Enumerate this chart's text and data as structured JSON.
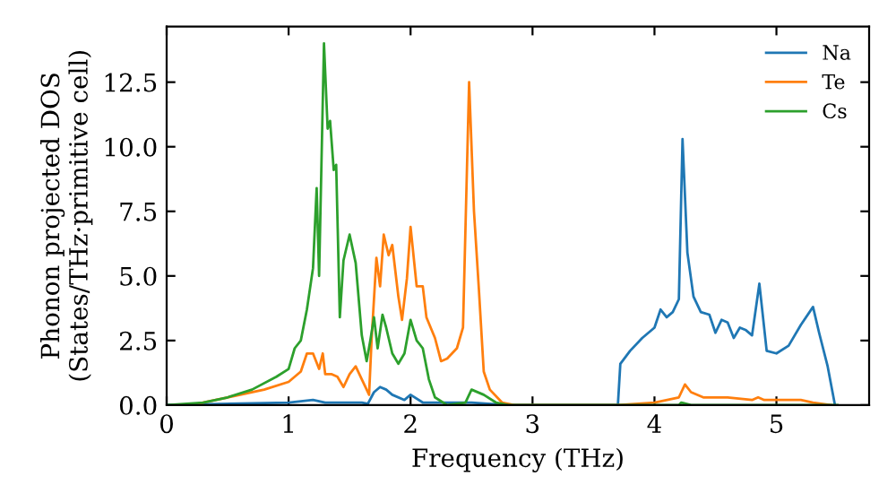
{
  "chart_data": {
    "type": "line",
    "xlabel": "Frequency (THz)",
    "ylabel": "Phonon projected DOS\n(States/THz·primitive cell)",
    "xlim": [
      0,
      5.76
    ],
    "ylim": [
      0,
      14.65
    ],
    "xticks": [
      0,
      1,
      2,
      3,
      4,
      5
    ],
    "yticks": [
      {
        "value": 0,
        "label": "0.0"
      },
      {
        "value": 2.5,
        "label": "2.5"
      },
      {
        "value": 5,
        "label": "5.0"
      },
      {
        "value": 7.5,
        "label": "7.5"
      },
      {
        "value": 10,
        "label": "10.0"
      },
      {
        "value": 12.5,
        "label": "12.5"
      }
    ],
    "legend": "top right",
    "grid": false,
    "series": [
      {
        "name": "Na",
        "color": "#1f77b4",
        "x": [
          0,
          1.0,
          1.2,
          1.3,
          1.6,
          1.65,
          1.7,
          1.75,
          1.8,
          1.85,
          1.95,
          2.0,
          2.1,
          2.5,
          2.8,
          3.7,
          3.72,
          3.8,
          3.9,
          4.0,
          4.05,
          4.1,
          4.15,
          4.2,
          4.23,
          4.27,
          4.32,
          4.38,
          4.45,
          4.5,
          4.55,
          4.6,
          4.65,
          4.7,
          4.75,
          4.8,
          4.86,
          4.92,
          5.0,
          5.1,
          5.2,
          5.3,
          5.35,
          5.42,
          5.48
        ],
        "values": [
          0,
          0.1,
          0.2,
          0.1,
          0.1,
          0.05,
          0.5,
          0.7,
          0.6,
          0.4,
          0.2,
          0.4,
          0.1,
          0.1,
          0,
          0,
          1.6,
          2.1,
          2.6,
          3.0,
          3.7,
          3.4,
          3.6,
          4.1,
          10.3,
          5.9,
          4.2,
          3.6,
          3.5,
          2.8,
          3.3,
          3.2,
          2.6,
          3.0,
          2.9,
          2.7,
          4.7,
          2.1,
          2.0,
          2.3,
          3.1,
          3.8,
          2.8,
          1.5,
          0
        ]
      },
      {
        "name": "Te",
        "color": "#ff7f0e",
        "x": [
          0.2,
          0.5,
          0.8,
          1.0,
          1.05,
          1.1,
          1.15,
          1.2,
          1.25,
          1.28,
          1.3,
          1.35,
          1.4,
          1.45,
          1.5,
          1.55,
          1.6,
          1.66,
          1.68,
          1.72,
          1.75,
          1.78,
          1.82,
          1.85,
          1.9,
          1.93,
          1.97,
          2.0,
          2.05,
          2.1,
          2.13,
          2.2,
          2.25,
          2.3,
          2.38,
          2.43,
          2.48,
          2.52,
          2.56,
          2.6,
          2.65,
          2.75,
          2.85,
          3.7,
          4.0,
          4.2,
          4.25,
          4.3,
          4.4,
          4.6,
          4.8,
          4.85,
          4.9,
          5.0,
          5.2,
          5.3,
          5.45
        ],
        "values": [
          0,
          0.3,
          0.6,
          0.9,
          1.1,
          1.3,
          2.0,
          2.0,
          1.4,
          2.0,
          1.2,
          1.2,
          1.1,
          0.7,
          1.2,
          1.5,
          1.0,
          0.4,
          2.5,
          5.7,
          4.6,
          6.6,
          5.8,
          6.2,
          4.2,
          3.3,
          4.9,
          6.9,
          4.6,
          4.6,
          3.4,
          2.6,
          1.7,
          1.8,
          2.2,
          3.0,
          12.5,
          7.5,
          4.5,
          1.3,
          0.6,
          0.1,
          0,
          0,
          0.1,
          0.3,
          0.8,
          0.5,
          0.3,
          0.3,
          0.2,
          0.3,
          0.2,
          0.2,
          0.2,
          0.1,
          0
        ]
      },
      {
        "name": "Cs",
        "color": "#2ca02c",
        "x": [
          0,
          0.3,
          0.5,
          0.7,
          0.9,
          1.0,
          1.05,
          1.1,
          1.15,
          1.2,
          1.23,
          1.25,
          1.29,
          1.32,
          1.34,
          1.37,
          1.39,
          1.42,
          1.45,
          1.5,
          1.55,
          1.6,
          1.64,
          1.67,
          1.7,
          1.73,
          1.77,
          1.8,
          1.85,
          1.9,
          1.95,
          2.0,
          2.05,
          2.1,
          2.15,
          2.2,
          2.3,
          2.45,
          2.5,
          2.6,
          2.7,
          2.8,
          3.5,
          4.2,
          4.22,
          4.3,
          5.5
        ],
        "values": [
          0,
          0.1,
          0.3,
          0.6,
          1.1,
          1.4,
          2.2,
          2.5,
          3.7,
          5.3,
          8.4,
          5.0,
          14.0,
          10.7,
          11.0,
          9.1,
          9.3,
          3.4,
          5.6,
          6.6,
          5.5,
          2.7,
          1.7,
          2.5,
          3.4,
          2.2,
          3.5,
          3.0,
          2.0,
          1.6,
          2.0,
          3.3,
          2.5,
          2.2,
          1.0,
          0.3,
          0,
          0.1,
          0.6,
          0.4,
          0.1,
          0,
          0,
          0,
          0.1,
          0,
          0
        ]
      }
    ]
  }
}
